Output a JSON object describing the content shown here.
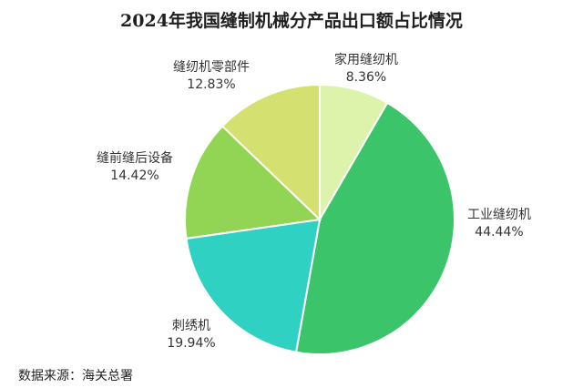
{
  "chart_data": {
    "type": "pie",
    "title": "2024年我国缝制机械分产品出口额占比情况",
    "categories": [
      "家用缝纫机",
      "工业缝纫机",
      "刺绣机",
      "缝前缝后设备",
      "缝纫机零部件"
    ],
    "values": [
      8.36,
      44.44,
      19.94,
      14.42,
      12.83
    ],
    "value_labels": [
      "8.36%",
      "44.44%",
      "19.94%",
      "14.42%",
      "12.83%"
    ],
    "colors": [
      "#ddf2aa",
      "#3cc46a",
      "#2fd2c2",
      "#92d454",
      "#d4e070"
    ],
    "start": "12 o'clock",
    "direction": "clockwise",
    "legend": "none"
  },
  "source": "数据来源：海关总署"
}
